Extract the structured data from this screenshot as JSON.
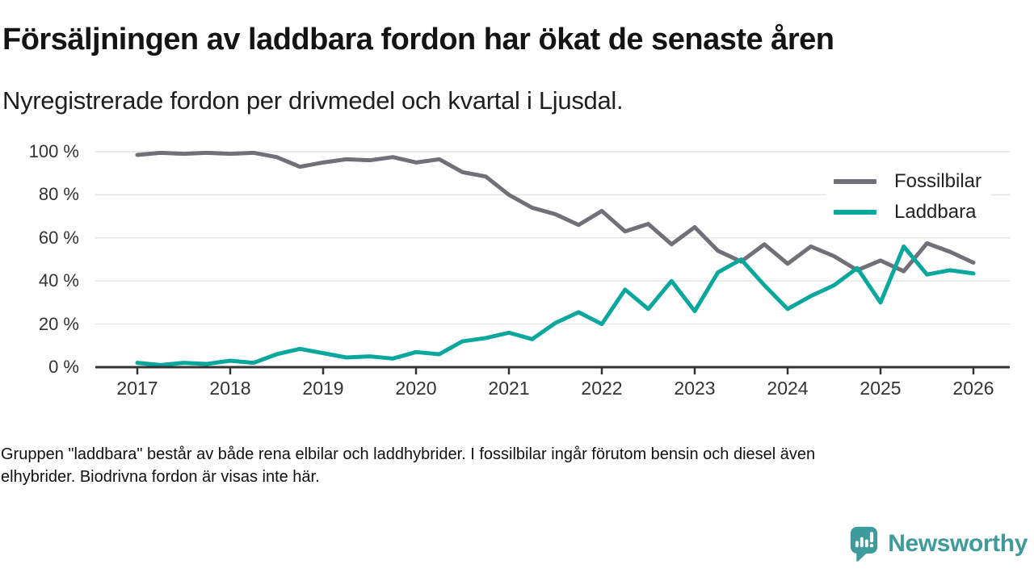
{
  "header": {
    "title": "Försäljningen av laddbara fordon har ökat de senaste åren",
    "subtitle": "Nyregistrerade fordon per drivmedel och kvartal i Ljusdal."
  },
  "chart_data": {
    "type": "line",
    "title": "Försäljningen av laddbara fordon har ökat de senaste åren",
    "subtitle": "Nyregistrerade fordon per drivmedel och kvartal i Ljusdal.",
    "x_unit": "quarter",
    "x_start": "2017-Q1",
    "x_end": "2026-Q1",
    "points_per_year": 4,
    "x_tick_labels": [
      "2017",
      "2018",
      "2019",
      "2020",
      "2021",
      "2022",
      "2023",
      "2024",
      "2025",
      "2026"
    ],
    "y_ticks": [
      0,
      20,
      40,
      60,
      80,
      100
    ],
    "y_tick_labels": [
      "0 %",
      "20 %",
      "40 %",
      "60 %",
      "80 %",
      "100 %"
    ],
    "ylim": [
      0,
      100
    ],
    "grid": "horizontal",
    "legend_position": "top-right",
    "series": [
      {
        "name": "Fossilbilar",
        "color": "#716f77",
        "values": [
          98.5,
          99.5,
          99,
          99.5,
          99,
          99.5,
          97.5,
          93,
          95,
          96.5,
          96,
          97.5,
          95,
          96.5,
          90.5,
          88.5,
          80,
          74,
          71,
          66,
          72.5,
          63,
          66.5,
          57,
          65,
          54,
          49,
          57,
          48,
          56,
          51.5,
          45,
          49.5,
          44.5,
          57.5,
          53.5,
          48.5
        ]
      },
      {
        "name": "Laddbara",
        "color": "#0aa79d",
        "values": [
          2,
          1,
          2,
          1.5,
          3,
          2,
          6,
          8.5,
          6.5,
          4.5,
          5,
          4,
          7,
          6,
          12,
          13.5,
          16,
          13,
          20.5,
          25.5,
          20,
          36,
          27,
          40,
          26,
          44,
          50,
          38,
          27,
          33,
          38,
          46,
          30,
          56,
          43,
          45,
          43.5
        ]
      }
    ],
    "axis_color": "#333333",
    "gridline_color": "#e4e4e4"
  },
  "footnote": {
    "lines": [
      "Gruppen \"laddbara\" består av både rena elbilar och laddhybrider. I fossilbilar ingår förutom bensin och diesel även",
      "elhybrider. Biodrivna fordon är visas inte här."
    ]
  },
  "branding": {
    "name": "Newsworthy",
    "color": "#3e9b9b",
    "icon": "newsworthy-speech-bubble-chart-icon"
  }
}
